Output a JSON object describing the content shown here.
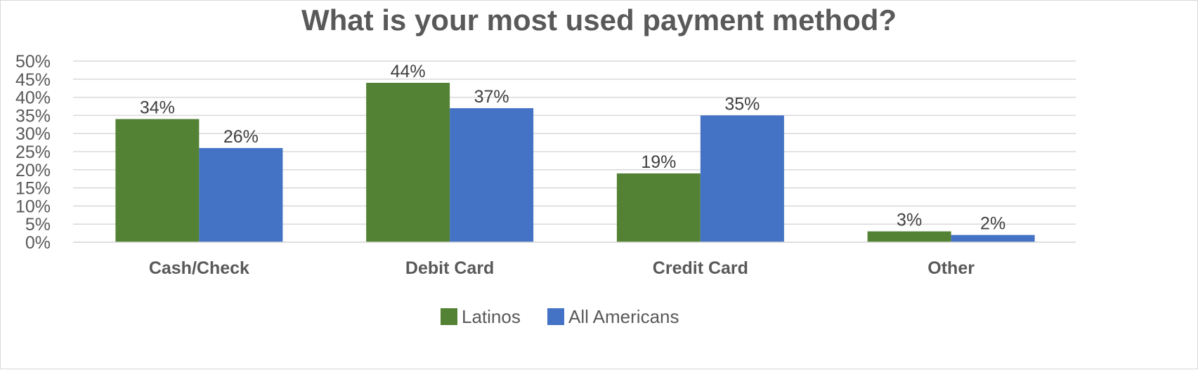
{
  "chart_data": {
    "type": "bar",
    "title": "What is your most used payment method?",
    "categories": [
      "Cash/Check",
      "Debit Card",
      "Credit Card",
      "Other"
    ],
    "series": [
      {
        "name": "Latinos",
        "color": "#548235",
        "values": [
          34,
          44,
          19,
          3
        ],
        "labels": [
          "34%",
          "44%",
          "19%",
          "3%"
        ]
      },
      {
        "name": "All Americans",
        "color": "#4472C4",
        "values": [
          26,
          37,
          35,
          2
        ],
        "labels": [
          "26%",
          "37%",
          "35%",
          "2%"
        ]
      }
    ],
    "ylim": [
      0,
      50
    ],
    "yticks": [
      "0%",
      "5%",
      "10%",
      "15%",
      "20%",
      "25%",
      "30%",
      "35%",
      "40%",
      "45%",
      "50%"
    ],
    "xlabel": "",
    "ylabel": "",
    "grid": true,
    "legend_position": "bottom",
    "gridline_color": "#d9d9d9",
    "text_color": "#595959"
  }
}
